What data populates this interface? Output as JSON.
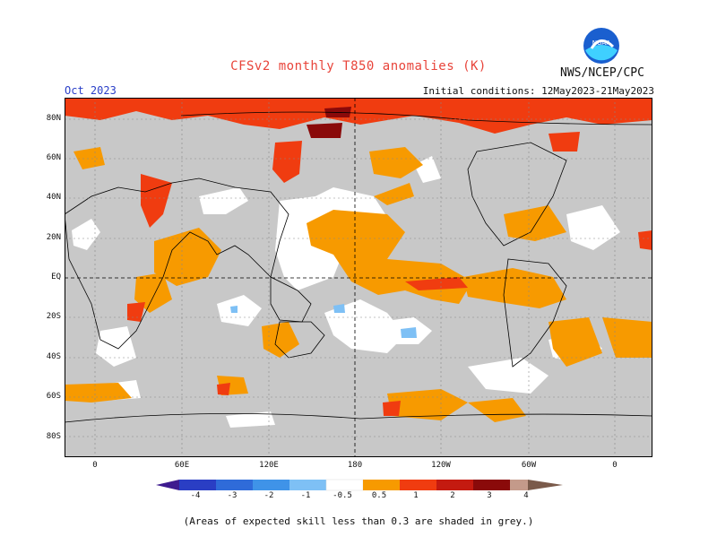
{
  "header": {
    "title": "CFSv2 monthly T850 anomalies (K)",
    "org": "NWS/NCEP/CPC",
    "month": "Oct 2023",
    "initial_conditions": "Initial conditions: 12May2023-21May2023"
  },
  "map": {
    "lat_labels": [
      "80N",
      "60N",
      "40N",
      "20N",
      "EQ",
      "20S",
      "40S",
      "60S",
      "80S"
    ],
    "lon_labels": [
      "0",
      "60E",
      "120E",
      "180",
      "120W",
      "60W",
      "0"
    ],
    "grey_skill_color": "#c8c8c8"
  },
  "colorbar": {
    "labels": [
      "-4",
      "-3",
      "-2",
      "-1",
      "-0.5",
      "0.5",
      "1",
      "2",
      "3",
      "4"
    ],
    "colors": {
      "lt_-4": "#3e1b8f",
      "-4_-3": "#2a3ec4",
      "-3_-2": "#2f6bd9",
      "-2_-1": "#3f93e8",
      "-1_-0.5": "#7ec0f5",
      "-0.5_0.5": "#ffffff",
      "0.5_1": "#f79a00",
      "1_2": "#f03c10",
      "2_3": "#c41a10",
      "3_4": "#8a0a0a",
      "4_5": "#c49a8a",
      "gt_5": "#7a5a4a"
    }
  },
  "footnote": "(Areas of expected skill less than 0.3 are shaded in grey.)"
}
